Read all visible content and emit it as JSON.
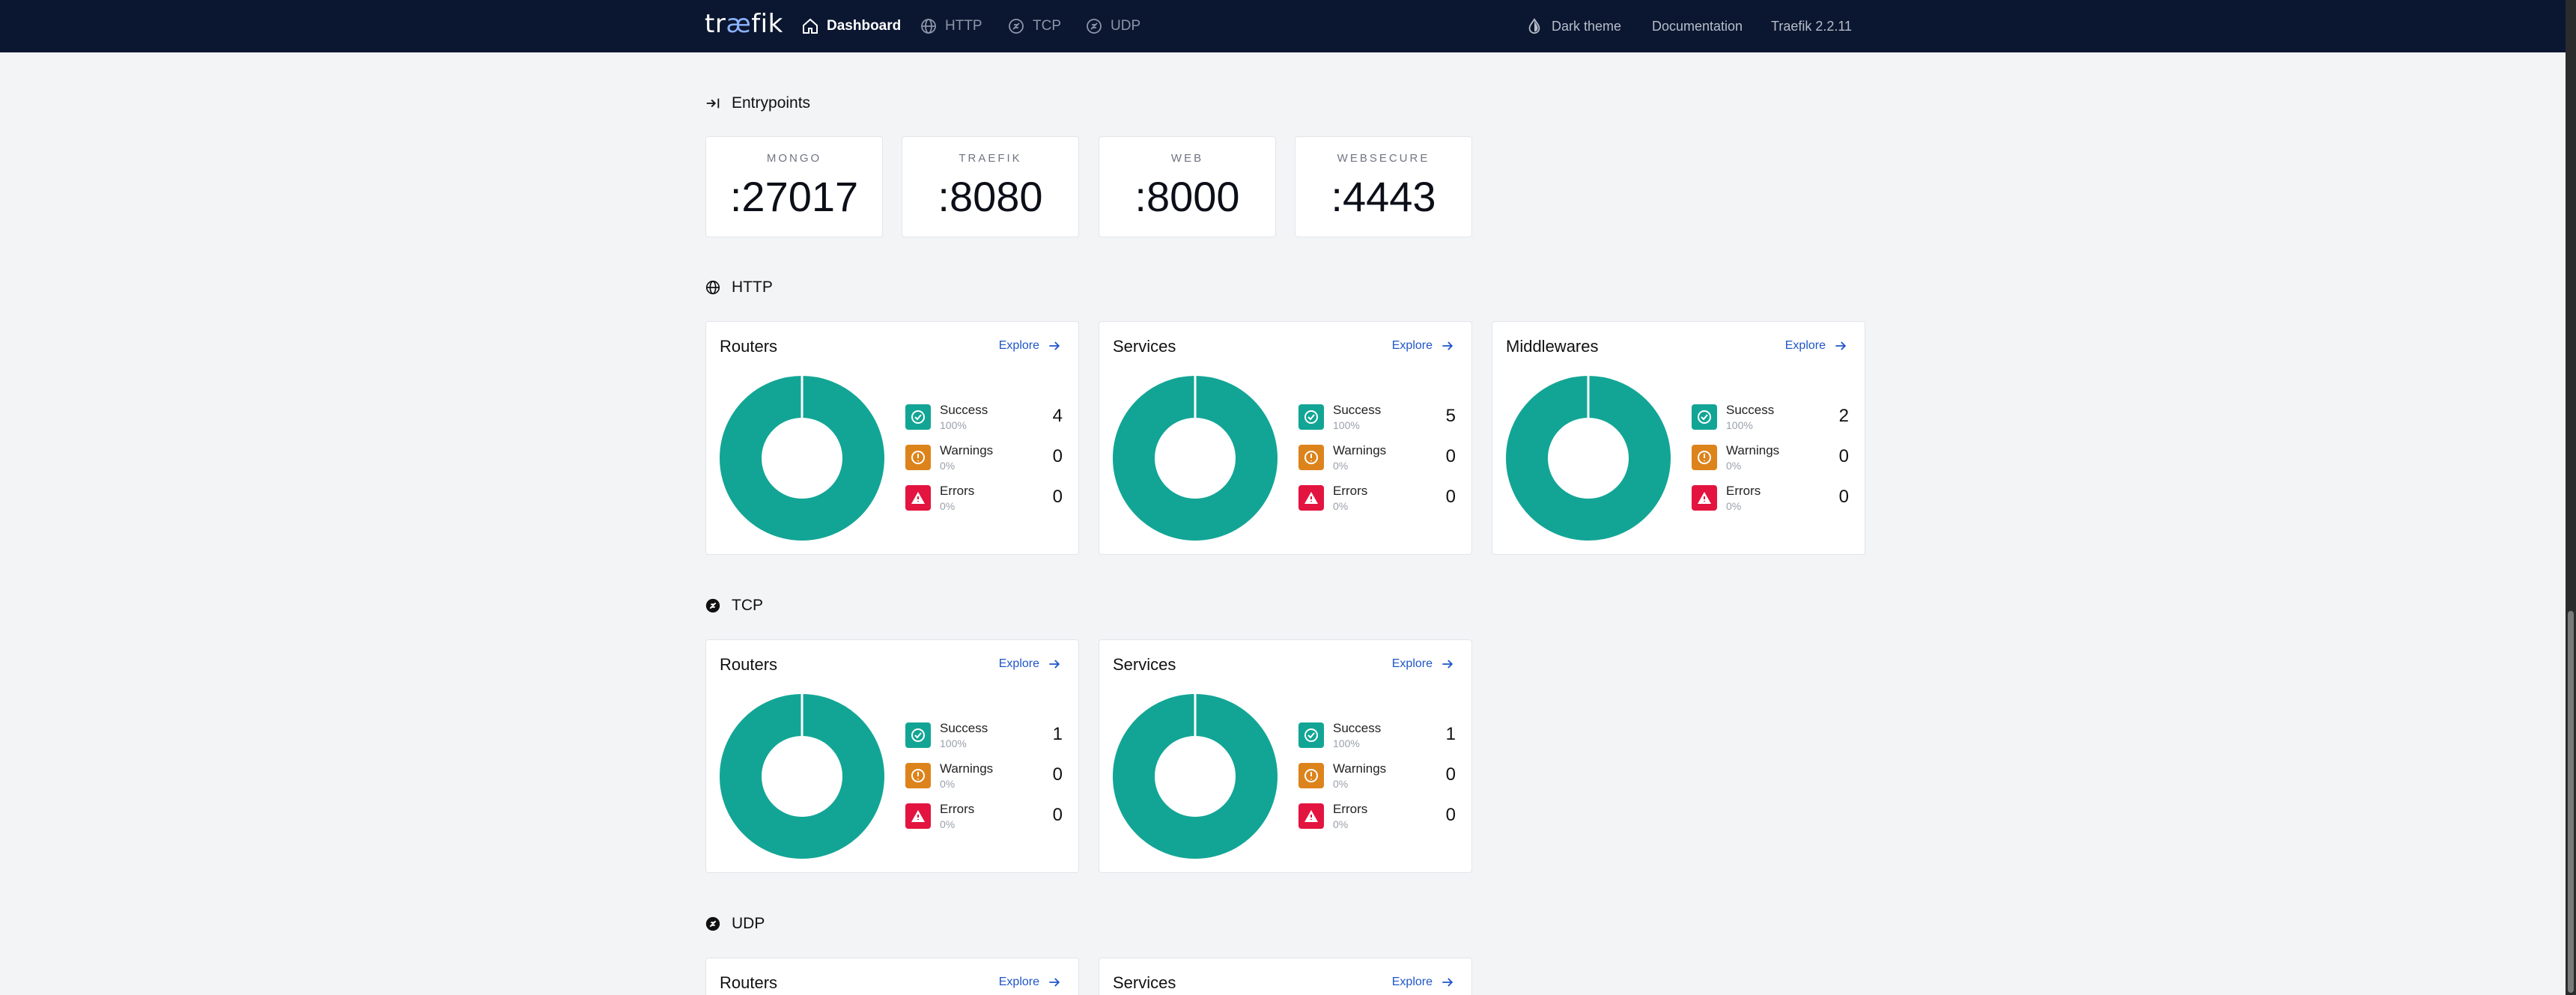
{
  "nav": {
    "logo_pre": "tr",
    "logo_ae": "æ",
    "logo_post": "fik",
    "items": [
      {
        "label": "Dashboard",
        "icon": "home-icon",
        "active": true
      },
      {
        "label": "HTTP",
        "icon": "globe-icon"
      },
      {
        "label": "TCP",
        "icon": "tcp-icon"
      },
      {
        "label": "UDP",
        "icon": "udp-icon"
      }
    ],
    "dark_theme": "Dark theme",
    "documentation": "Documentation",
    "version": "Traefik 2.2.11"
  },
  "entrypoints": {
    "title": "Entrypoints",
    "items": [
      {
        "name": "MONGO",
        "port": ":27017"
      },
      {
        "name": "TRAEFIK",
        "port": ":8080"
      },
      {
        "name": "WEB",
        "port": ":8000"
      },
      {
        "name": "WEBSECURE",
        "port": ":4443"
      }
    ]
  },
  "labels": {
    "explore": "Explore",
    "success": "Success",
    "warnings": "Warnings",
    "errors": "Errors"
  },
  "http": {
    "title": "HTTP",
    "cards": [
      {
        "title": "Routers",
        "success": "4",
        "success_pct": "100%",
        "warnings": "0",
        "warnings_pct": "0%",
        "errors": "0",
        "errors_pct": "0%"
      },
      {
        "title": "Services",
        "success": "5",
        "success_pct": "100%",
        "warnings": "0",
        "warnings_pct": "0%",
        "errors": "0",
        "errors_pct": "0%"
      },
      {
        "title": "Middlewares",
        "success": "2",
        "success_pct": "100%",
        "warnings": "0",
        "warnings_pct": "0%",
        "errors": "0",
        "errors_pct": "0%"
      }
    ]
  },
  "tcp": {
    "title": "TCP",
    "cards": [
      {
        "title": "Routers",
        "success": "1",
        "success_pct": "100%",
        "warnings": "0",
        "warnings_pct": "0%",
        "errors": "0",
        "errors_pct": "0%"
      },
      {
        "title": "Services",
        "success": "1",
        "success_pct": "100%",
        "warnings": "0",
        "warnings_pct": "0%",
        "errors": "0",
        "errors_pct": "0%"
      }
    ]
  },
  "udp": {
    "title": "UDP",
    "cards": [
      {
        "title": "Routers"
      },
      {
        "title": "Services"
      }
    ]
  },
  "colors": {
    "success": "#12a595",
    "warning": "#dd831c",
    "error": "#e3143f",
    "nav_bg": "#0b1630"
  }
}
